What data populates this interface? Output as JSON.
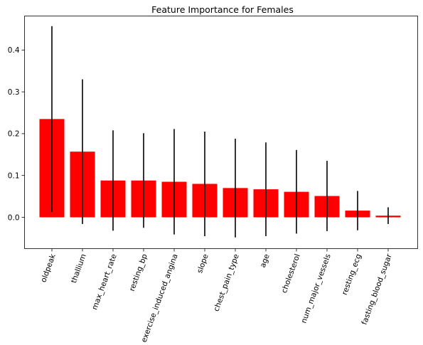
{
  "chart_data": {
    "type": "bar",
    "title": "Feature Importance for Females",
    "xlabel": "",
    "ylabel": "",
    "categories": [
      "oldpeak",
      "thallium",
      "max_heart_rate",
      "resting_bp",
      "exercise_induced_angina",
      "slope",
      "chest_pain_type",
      "age",
      "cholesterol",
      "num_major_vessels",
      "resting_ecg",
      "fasting_blood_sugar"
    ],
    "values": [
      0.235,
      0.157,
      0.088,
      0.088,
      0.085,
      0.08,
      0.07,
      0.067,
      0.061,
      0.051,
      0.016,
      0.004
    ],
    "errors": [
      0.222,
      0.173,
      0.12,
      0.113,
      0.126,
      0.125,
      0.118,
      0.112,
      0.1,
      0.084,
      0.047,
      0.02
    ],
    "yticks": [
      0.0,
      0.1,
      0.2,
      0.3,
      0.4
    ],
    "ytick_labels": [
      "0.0",
      "0.1",
      "0.2",
      "0.3",
      "0.4"
    ],
    "ylim": [
      -0.077,
      0.48
    ],
    "bar_color": "#ff0000",
    "error_color": "#000000",
    "grid": false,
    "legend": false
  }
}
